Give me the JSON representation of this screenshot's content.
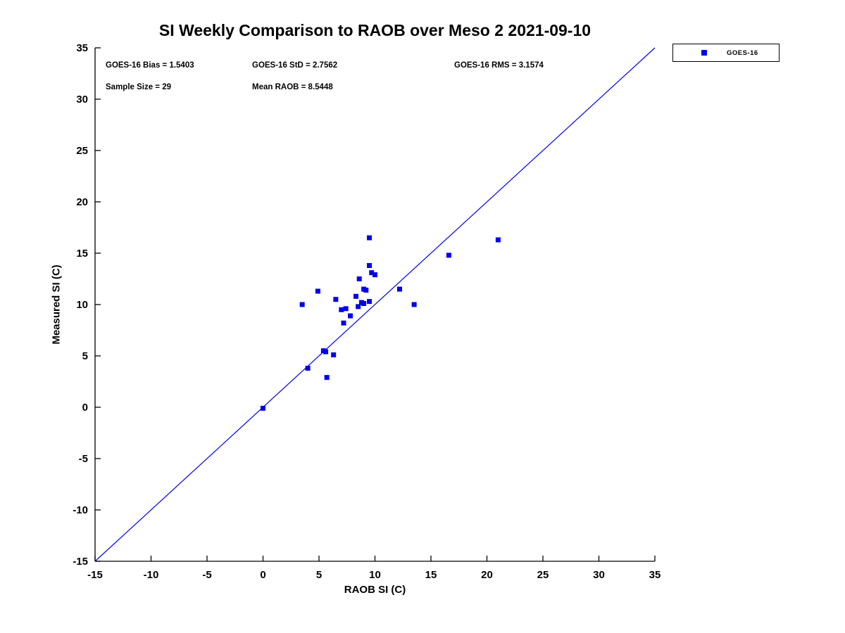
{
  "chart_data": {
    "type": "scatter",
    "title": "SI Weekly Comparison to RAOB over Meso 2 2021-09-10",
    "xlabel": "RAOB SI (C)",
    "ylabel": "Measured SI (C)",
    "xlim": [
      -15,
      35
    ],
    "ylim": [
      -15,
      35
    ],
    "xticks": [
      -15,
      -10,
      -5,
      0,
      5,
      10,
      15,
      20,
      25,
      30,
      35
    ],
    "yticks": [
      -15,
      -10,
      -5,
      0,
      5,
      10,
      15,
      20,
      25,
      30,
      35
    ],
    "grid": false,
    "legend": {
      "position": "top-right-outside",
      "entries": [
        "GOES-16"
      ]
    },
    "series": [
      {
        "name": "GOES-16",
        "marker": "square",
        "color": "#0000ee",
        "points": [
          [
            0,
            -0.1
          ],
          [
            3.5,
            10
          ],
          [
            4,
            3.8
          ],
          [
            4.9,
            11.3
          ],
          [
            5.4,
            5.5
          ],
          [
            5.6,
            5.4
          ],
          [
            5.7,
            2.9
          ],
          [
            6.3,
            5.1
          ],
          [
            6.5,
            10.5
          ],
          [
            7,
            9.5
          ],
          [
            7.2,
            8.2
          ],
          [
            7.4,
            9.6
          ],
          [
            7.8,
            8.9
          ],
          [
            8.3,
            10.8
          ],
          [
            8.5,
            9.8
          ],
          [
            8.6,
            12.5
          ],
          [
            8.8,
            10.2
          ],
          [
            9,
            10.1
          ],
          [
            9,
            11.5
          ],
          [
            9.2,
            11.4
          ],
          [
            9.5,
            16.5
          ],
          [
            9.5,
            13.8
          ],
          [
            9.5,
            10.3
          ],
          [
            9.7,
            13.1
          ],
          [
            10,
            12.9
          ],
          [
            12.2,
            11.5
          ],
          [
            13.5,
            10
          ],
          [
            16.6,
            14.8
          ],
          [
            21,
            16.3
          ]
        ]
      }
    ],
    "reference_line": {
      "from": [
        -15,
        -15
      ],
      "to": [
        35,
        35
      ],
      "color": "#0000ee"
    },
    "stats": {
      "bias": "GOES-16 Bias = 1.5403",
      "std": "GOES-16 StD = 2.7562",
      "rms": "GOES-16 RMS = 3.1574",
      "sample_size": "Sample Size = 29",
      "mean_raob": "Mean RAOB = 8.5448"
    }
  }
}
